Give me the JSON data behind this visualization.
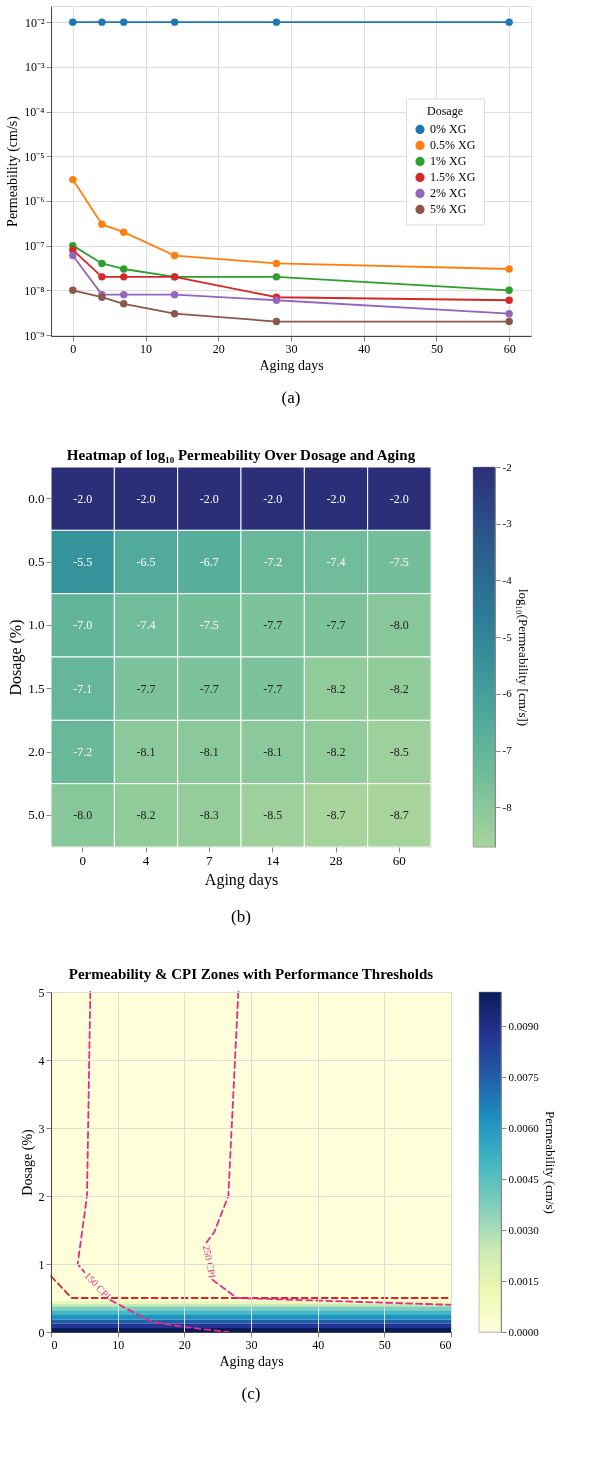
{
  "chart_data": [
    {
      "type": "line",
      "xlabel": "Aging days",
      "ylabel": "Permeability (cm/s)",
      "x": [
        0,
        4,
        7,
        14,
        28,
        60
      ],
      "log": true,
      "xlim": [
        -3,
        63
      ],
      "xticks": [
        0,
        10,
        20,
        30,
        40,
        50,
        60
      ],
      "ylim": [
        9.5e-10,
        0.023
      ],
      "yticks": [
        {
          "value": 1e-09,
          "label": "10⁻⁹"
        },
        {
          "value": 1e-08,
          "label": "10⁻⁸"
        },
        {
          "value": 1e-07,
          "label": "10⁻⁷"
        },
        {
          "value": 1e-06,
          "label": "10⁻⁶"
        },
        {
          "value": 1e-05,
          "label": "10⁻⁵"
        },
        {
          "value": 0.0001,
          "label": "10⁻⁴"
        },
        {
          "value": 0.001,
          "label": "10⁻³"
        },
        {
          "value": 0.01,
          "label": "10⁻²"
        }
      ],
      "grid": true,
      "legend": "right",
      "legend_title": "Dosage",
      "marker": "circle",
      "series": [
        {
          "name": "0% XG",
          "color": "#1f77b4",
          "values": [
            0.01,
            0.01,
            0.01,
            0.01,
            0.01,
            0.01
          ]
        },
        {
          "name": "0.5% XG",
          "color": "#ff7f0e",
          "values": [
            3e-06,
            3e-07,
            2e-07,
            6e-08,
            4e-08,
            3e-08
          ]
        },
        {
          "name": "1% XG",
          "color": "#2ca02c",
          "values": [
            1e-07,
            4e-08,
            3e-08,
            2e-08,
            2e-08,
            1e-08
          ]
        },
        {
          "name": "1.5% XG",
          "color": "#d62728",
          "values": [
            8e-08,
            2e-08,
            2e-08,
            2e-08,
            7e-09,
            6e-09
          ]
        },
        {
          "name": "2% XG",
          "color": "#9467bd",
          "values": [
            6e-08,
            8e-09,
            8e-09,
            8e-09,
            6e-09,
            3e-09
          ]
        },
        {
          "name": "5% XG",
          "color": "#8c564b",
          "values": [
            1e-08,
            7e-09,
            5e-09,
            3e-09,
            2e-09,
            2e-09
          ]
        }
      ],
      "annotations": [
        "(a)"
      ]
    },
    {
      "type": "heatmap",
      "title": "Heatmap of log₁₀ Permeability Over Dosage and Aging",
      "xlabel": "Aging days",
      "ylabel": "Dosage (%)",
      "clabel": "log₁₀(Permeability [cm/s])",
      "categories": [
        "0",
        "4",
        "7",
        "14",
        "28",
        "60"
      ],
      "y_categories": [
        "0.0",
        "0.5",
        "1.0",
        "1.5",
        "2.0",
        "5.0"
      ],
      "cells": [
        [
          -2.0,
          -2.0,
          -2.0,
          -2.0,
          -2.0,
          -2.0
        ],
        [
          -5.5,
          -6.5,
          -6.7,
          -7.2,
          -7.4,
          -7.5
        ],
        [
          -7.0,
          -7.4,
          -7.5,
          -7.7,
          -7.7,
          -8.0
        ],
        [
          -7.1,
          -7.7,
          -7.7,
          -7.7,
          -8.2,
          -8.2
        ],
        [
          -7.2,
          -8.1,
          -8.1,
          -8.1,
          -8.2,
          -8.5
        ],
        [
          -8.0,
          -8.2,
          -8.3,
          -8.5,
          -8.7,
          -8.7
        ]
      ],
      "cell_labels": [
        [
          "-2.0",
          "-2.0",
          "-2.0",
          "-2.0",
          "-2.0",
          "-2.0"
        ],
        [
          "-5.5",
          "-6.5",
          "-6.7",
          "-7.2",
          "-7.4",
          "-7.5"
        ],
        [
          "-7.0",
          "-7.4",
          "-7.5",
          "-7.7",
          "-7.7",
          "-8.0"
        ],
        [
          "-7.1",
          "-7.7",
          "-7.7",
          "-7.7",
          "-8.2",
          "-8.2"
        ],
        [
          "-7.2",
          "-8.1",
          "-8.1",
          "-8.1",
          "-8.2",
          "-8.5"
        ],
        [
          "-8.0",
          "-8.2",
          "-8.3",
          "-8.5",
          "-8.7",
          "-8.7"
        ]
      ],
      "clim": [
        -8.7,
        -2
      ],
      "cticks": [
        -2,
        -3,
        -4,
        -5,
        -6,
        -7,
        -8
      ],
      "annotations": [
        "(b)"
      ]
    },
    {
      "type": "line",
      "title": "Permeability & CPI Zones with Performance Thresholds",
      "xlabel": "Aging days",
      "ylabel": "Dosage (%)",
      "clabel": "Permeability (cm/s)",
      "clim": [
        0,
        0.01
      ],
      "cticks": [
        {
          "value": 0,
          "label": "0.0000"
        },
        {
          "value": 0.0015,
          "label": "0.0015"
        },
        {
          "value": 0.003,
          "label": "0.0030"
        },
        {
          "value": 0.0045,
          "label": "0.0045"
        },
        {
          "value": 0.006,
          "label": "0.0060"
        },
        {
          "value": 0.0075,
          "label": "0.0075"
        },
        {
          "value": 0.009,
          "label": "0.0090"
        }
      ],
      "xlim": [
        0,
        60
      ],
      "xticks": [
        0,
        10,
        20,
        30,
        40,
        50,
        60
      ],
      "ylim": [
        0,
        5
      ],
      "yticks": [
        0,
        1,
        2,
        3,
        4,
        5
      ],
      "grid": true,
      "line_style": "dashed",
      "series": [
        {
          "color": "#d62728",
          "x": [
            0,
            3.1,
            60
          ],
          "values": [
            0.82,
            0.5,
            0.5
          ]
        },
        {
          "name": "150 CPI",
          "color": "#e7298a",
          "x": [
            5.9,
            5.4,
            4.0,
            5.0,
            6.95,
            8.9,
            15.1,
            20.3,
            26.6
          ],
          "values": [
            5,
            2,
            1.0,
            0.88,
            null,
            0.47,
            0.15,
            0.07,
            0
          ]
        },
        {
          "name": "250 CPI",
          "color": "#e7298a",
          "x": [
            28.1,
            26.6,
            24.5,
            23.2,
            23.7,
            24.2,
            27.9,
            60
          ],
          "values": [
            5,
            2,
            1.47,
            1.3,
            null,
            0.77,
            0.5,
            0.4
          ]
        }
      ],
      "bands": [
        {
          "axis": "y",
          "from": 0,
          "to": 0.06,
          "color": "#081d58"
        },
        {
          "axis": "y",
          "from": 0.06,
          "to": 0.12,
          "color": "#253494"
        },
        {
          "axis": "y",
          "from": 0.12,
          "to": 0.18,
          "color": "#225ea8"
        },
        {
          "axis": "y",
          "from": 0.18,
          "to": 0.25,
          "color": "#1d91c0"
        },
        {
          "axis": "y",
          "from": 0.25,
          "to": 0.32,
          "color": "#41b6c4"
        },
        {
          "axis": "y",
          "from": 0.32,
          "to": 0.38,
          "color": "#7fcdbb"
        },
        {
          "axis": "y",
          "from": 0.38,
          "to": 0.42,
          "color": "#c7e9b4"
        },
        {
          "axis": "y",
          "from": 0.42,
          "to": 0.46,
          "color": "#edf8b1"
        },
        {
          "axis": "y",
          "from": 0.46,
          "to": 5,
          "color": "#ffffd9"
        }
      ],
      "annotations": [
        "(c)"
      ]
    }
  ]
}
